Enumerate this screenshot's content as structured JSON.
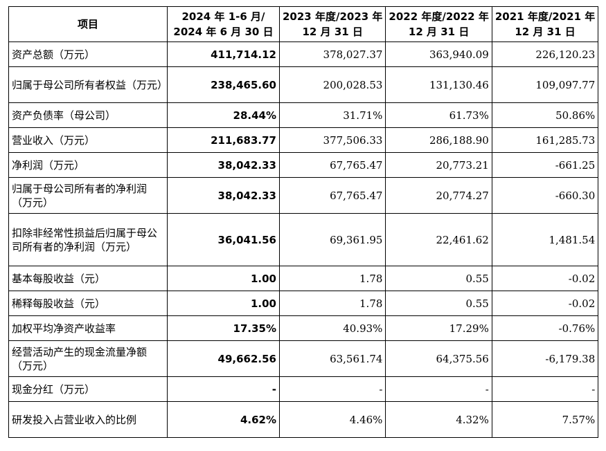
{
  "table": {
    "headers": [
      {
        "lines": [
          "项目"
        ]
      },
      {
        "lines": [
          "2024 年 1-6 月/",
          "2024 年 6 月 30 日"
        ]
      },
      {
        "lines": [
          "2023 年度/2023 年",
          "12 月 31 日"
        ]
      },
      {
        "lines": [
          "2022 年度/2022 年",
          "12 月 31 日"
        ]
      },
      {
        "lines": [
          "2021 年度/2021 年",
          "12 月 31 日"
        ]
      }
    ],
    "rows": [
      {
        "label": "资产总额（万元）",
        "values": [
          "411,714.12",
          "378,027.37",
          "363,940.09",
          "226,120.23"
        ]
      },
      {
        "label": "归属于母公司所有者权益（万元）",
        "values": [
          "238,465.60",
          "200,028.53",
          "131,130.46",
          "109,097.77"
        ]
      },
      {
        "label": "资产负债率（母公司）",
        "values": [
          "28.44%",
          "31.71%",
          "61.73%",
          "50.86%"
        ]
      },
      {
        "label": "营业收入（万元）",
        "values": [
          "211,683.77",
          "377,506.33",
          "286,188.90",
          "161,285.73"
        ]
      },
      {
        "label": "净利润（万元）",
        "values": [
          "38,042.33",
          "67,765.47",
          "20,773.21",
          "-661.25"
        ]
      },
      {
        "label": "归属于母公司所有者的净利润（万元）",
        "values": [
          "38,042.33",
          "67,765.47",
          "20,774.27",
          "-660.30"
        ]
      },
      {
        "label": "扣除非经常性损益后归属于母公司所有者的净利润（万元）",
        "values": [
          "36,041.56",
          "69,361.95",
          "22,461.62",
          "1,481.54"
        ]
      },
      {
        "label": "基本每股收益（元）",
        "values": [
          "1.00",
          "1.78",
          "0.55",
          "-0.02"
        ]
      },
      {
        "label": "稀释每股收益（元）",
        "values": [
          "1.00",
          "1.78",
          "0.55",
          "-0.02"
        ]
      },
      {
        "label": "加权平均净资产收益率",
        "values": [
          "17.35%",
          "40.93%",
          "17.29%",
          "-0.76%"
        ]
      },
      {
        "label": "经营活动产生的现金流量净额（万元）",
        "values": [
          "49,662.56",
          "63,561.74",
          "64,375.56",
          "-6,179.38"
        ]
      },
      {
        "label": "现金分红（万元）",
        "values": [
          "-",
          "-",
          "-",
          "-"
        ]
      },
      {
        "label": "研发投入占营业收入的比例",
        "values": [
          "4.62%",
          "4.46%",
          "4.32%",
          "7.57%"
        ]
      }
    ]
  }
}
